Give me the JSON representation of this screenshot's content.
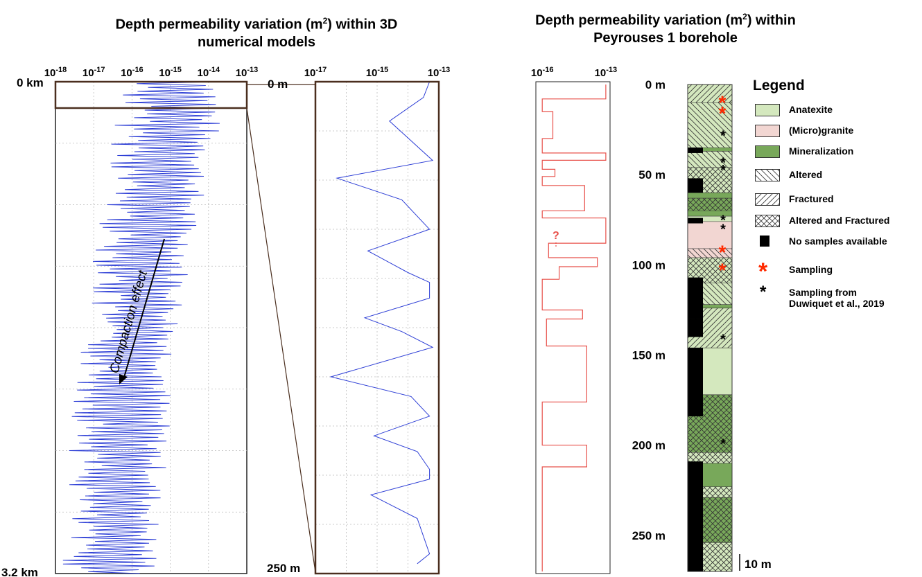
{
  "figure": {
    "title_left_pre": "Depth permeability variation (m",
    "title_left_sup": "2",
    "title_left_post": ") within 3D",
    "title_left_line2": "numerical models",
    "title_right_pre": "Depth permeability variation (m",
    "title_right_sup": "2",
    "title_right_post": ") within",
    "title_right_line2": "Peyrouses 1 borehole",
    "annotation_compaction": "Compaction effect",
    "question_mark": "?",
    "scale_bar_label": "10 m"
  },
  "legend": {
    "title": "Legend",
    "items": [
      {
        "label": "Anatexite",
        "symbol": "fill",
        "color": "#d4e8be"
      },
      {
        "label": "(Micro)granite",
        "symbol": "fill",
        "color": "#f2d6d2"
      },
      {
        "label": "Mineralization",
        "symbol": "fill",
        "color": "#78a85a"
      },
      {
        "label": "Altered",
        "symbol": "hatch-back"
      },
      {
        "label": "Fractured",
        "symbol": "hatch-fwd"
      },
      {
        "label": "Altered and Fractured",
        "symbol": "hatch-cross"
      },
      {
        "label": "No samples available",
        "symbol": "black-square",
        "color": "#000000"
      },
      {
        "label": "Sampling",
        "symbol": "red-star",
        "color": "#ff2a00"
      },
      {
        "label": "Sampling from\nDuwiquet et al., 2019",
        "symbol": "black-star",
        "color": "#000000"
      }
    ]
  },
  "chart_data": [
    {
      "type": "line",
      "name": "models-full",
      "xscale": "log",
      "x_ticks": [
        {
          "base": "10",
          "exp": "-18"
        },
        {
          "base": "10",
          "exp": "-17"
        },
        {
          "base": "10",
          "exp": "-16"
        },
        {
          "base": "10",
          "exp": "-15"
        },
        {
          "base": "10",
          "exp": "-14"
        },
        {
          "base": "10",
          "exp": "-13"
        }
      ],
      "y_labels": [
        "0 km",
        "3.2 km"
      ],
      "color": "#2e3fd6",
      "ylim_km": [
        0,
        3.2
      ],
      "xlim_exp": [
        -18,
        -13
      ],
      "profile": {
        "depth_km": [
          0,
          0.16,
          0.32,
          0.48,
          0.64,
          0.8,
          0.96,
          1.12,
          1.28,
          1.44,
          1.6,
          1.76,
          1.92,
          2.08,
          2.24,
          2.4,
          2.56,
          2.72,
          2.88,
          3.04,
          3.2
        ],
        "max_exp": [
          -13.5,
          -13.6,
          -13.7,
          -13.85,
          -14.0,
          -14.15,
          -14.3,
          -14.4,
          -14.5,
          -14.6,
          -14.7,
          -14.8,
          -14.9,
          -14.95,
          -15.0,
          -15.05,
          -15.1,
          -15.2,
          -15.25,
          -15.3,
          -15.3
        ],
        "min_exp": [
          -16.3,
          -16.4,
          -16.5,
          -16.6,
          -16.7,
          -16.8,
          -16.9,
          -17.0,
          -17.1,
          -17.2,
          -17.3,
          -17.4,
          -17.5,
          -17.55,
          -17.6,
          -17.65,
          -17.7,
          -17.75,
          -17.8,
          -17.85,
          -17.85
        ]
      }
    },
    {
      "type": "line",
      "name": "models-zoom",
      "xscale": "log",
      "x_ticks": [
        {
          "base": "10",
          "exp": "-17"
        },
        {
          "base": "10",
          "exp": "-15"
        },
        {
          "base": "10",
          "exp": "-13"
        }
      ],
      "y_labels": [
        "0 m",
        "250 m"
      ],
      "color": "#2e3fd6",
      "ylim_m": [
        0,
        250
      ],
      "xlim_exp": [
        -17,
        -13
      ],
      "depth_m": [
        0,
        8,
        20,
        40,
        49,
        60,
        75,
        86,
        97,
        102,
        110,
        120,
        127,
        135,
        150,
        160,
        170,
        180,
        188,
        197,
        202,
        210,
        222,
        240,
        245
      ],
      "log_k": [
        -13.3,
        -13.5,
        -14.6,
        -13.2,
        -16.3,
        -14.2,
        -13.3,
        -15.3,
        -14.0,
        -13.3,
        -13.3,
        -15.4,
        -14.2,
        -13.2,
        -16.5,
        -13.9,
        -13.3,
        -15.1,
        -13.7,
        -13.3,
        -13.3,
        -15.2,
        -13.7,
        -13.3,
        -13.7
      ]
    },
    {
      "type": "line",
      "name": "borehole-permeability",
      "xscale": "log",
      "x_ticks": [
        {
          "base": "10",
          "exp": "-16"
        },
        {
          "base": "10",
          "exp": "-13"
        }
      ],
      "color": "#e8504a",
      "xlim_exp": [
        -16.3,
        -12.8
      ],
      "ylim_m": [
        0,
        270
      ],
      "depth_m": [
        0,
        8,
        15,
        30,
        38,
        42,
        47,
        51,
        56,
        70,
        74,
        88,
        96,
        101,
        108,
        125,
        130,
        145,
        176,
        200,
        212,
        270
      ],
      "log_k": [
        -13.0,
        -16.0,
        -15.5,
        -16.0,
        -13.0,
        -16.0,
        -15.4,
        -16.0,
        -14.0,
        -16.0,
        -13.0,
        -15.7,
        -13.4,
        -15.2,
        -16.0,
        -14.1,
        -15.8,
        -13.9,
        -16.0,
        -13.9,
        -16.0,
        -16.0
      ]
    },
    {
      "type": "table",
      "name": "borehole-log",
      "depth_labels": [
        "0 m",
        "50 m",
        "100 m",
        "150 m",
        "200 m",
        "250 m"
      ],
      "depth_ticks_m": [
        0,
        50,
        100,
        150,
        200,
        250
      ],
      "ylim_m": [
        0,
        270
      ],
      "lithology_intervals": [
        {
          "from": 0,
          "to": 10,
          "type": "anatexite",
          "pattern": "hatch-fwd"
        },
        {
          "from": 10,
          "to": 35,
          "type": "anatexite",
          "pattern": "hatch-back"
        },
        {
          "from": 35,
          "to": 37,
          "type": "mineralization"
        },
        {
          "from": 37,
          "to": 46,
          "type": "anatexite",
          "pattern": "hatch-back"
        },
        {
          "from": 46,
          "to": 60,
          "type": "anatexite",
          "pattern": "hatch-cross"
        },
        {
          "from": 60,
          "to": 63,
          "type": "mineralization"
        },
        {
          "from": 63,
          "to": 70,
          "type": "mineralization",
          "pattern": "hatch-cross"
        },
        {
          "from": 70,
          "to": 73,
          "type": "mineralization"
        },
        {
          "from": 73,
          "to": 76,
          "type": "anatexite"
        },
        {
          "from": 76,
          "to": 91,
          "type": "microgranite"
        },
        {
          "from": 91,
          "to": 96,
          "type": "microgranite",
          "pattern": "hatch-back"
        },
        {
          "from": 96,
          "to": 110,
          "type": "anatexite",
          "pattern": "hatch-cross"
        },
        {
          "from": 110,
          "to": 122,
          "type": "anatexite",
          "pattern": "hatch-back"
        },
        {
          "from": 122,
          "to": 124,
          "type": "mineralization"
        },
        {
          "from": 124,
          "to": 146,
          "type": "anatexite",
          "pattern": "hatch-fwd"
        },
        {
          "from": 146,
          "to": 172,
          "type": "anatexite"
        },
        {
          "from": 172,
          "to": 204,
          "type": "mineralization",
          "pattern": "hatch-cross"
        },
        {
          "from": 204,
          "to": 210,
          "type": "anatexite",
          "pattern": "hatch-cross"
        },
        {
          "from": 210,
          "to": 223,
          "type": "mineralization"
        },
        {
          "from": 223,
          "to": 229,
          "type": "anatexite",
          "pattern": "hatch-cross"
        },
        {
          "from": 229,
          "to": 254,
          "type": "mineralization",
          "pattern": "hatch-cross"
        },
        {
          "from": 254,
          "to": 270,
          "type": "anatexite",
          "pattern": "hatch-cross"
        }
      ],
      "no_sample_intervals": [
        {
          "from": 35,
          "to": 38
        },
        {
          "from": 52,
          "to": 60
        },
        {
          "from": 74,
          "to": 77
        },
        {
          "from": 107,
          "to": 130
        },
        {
          "from": 130,
          "to": 140
        },
        {
          "from": 146,
          "to": 184
        },
        {
          "from": 209,
          "to": 270
        }
      ],
      "red_samples_m": [
        9,
        15,
        92,
        102
      ],
      "black_samples_m": [
        27,
        42,
        46,
        74,
        79,
        140,
        198
      ]
    }
  ]
}
